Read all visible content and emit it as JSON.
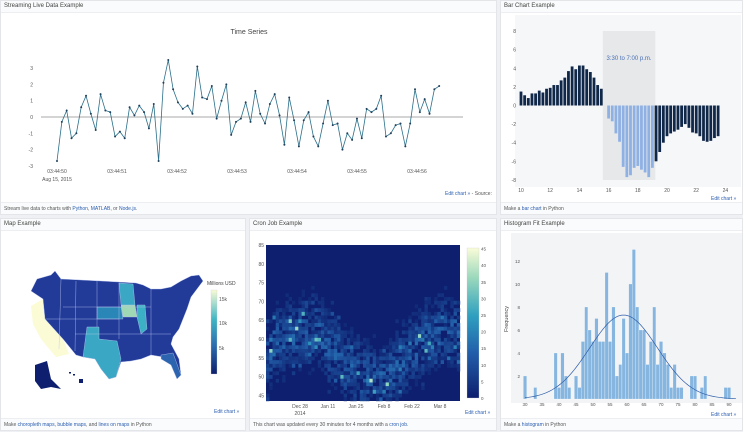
{
  "panels": {
    "stream": {
      "title": "Streaming Live Data Example",
      "footer_pre": "Stream live data to charts with ",
      "link1": "Python",
      "sep1": ", ",
      "link2": "MATLAB",
      "sep2": ", or ",
      "link3": "Node.js",
      "footer_post": ".",
      "edit": "Edit chart »",
      "source": " - Source:"
    },
    "bar": {
      "title": "Bar Chart Example",
      "footer_pre": "Make a ",
      "link1": "bar chart",
      "footer_post": " in Python",
      "edit": "Edit chart »"
    },
    "map": {
      "title": "Map Example",
      "footer_pre": "Make ",
      "link1": "choropleth maps",
      "sep1": ", ",
      "link2": "bubble maps",
      "sep2": ", and ",
      "link3": "lines on maps",
      "footer_post": " in Python",
      "edit": "Edit chart »"
    },
    "cron": {
      "title": "Cron Job Example",
      "footer_pre": "This chart was updated every 30 minutes for 4 months with a ",
      "link1": "cron job",
      "footer_post": ".",
      "edit": "Edit chart »"
    },
    "hist": {
      "title": "Histogram Fit Example",
      "footer_pre": "Make a ",
      "link1": "histogram",
      "footer_post": " in Python",
      "edit": "Edit chart »"
    }
  },
  "colors": {
    "line": "#2a6f8a",
    "bar_dark": "#0f2748",
    "bar_light": "#8fb0e3",
    "hist": "#86b6e0",
    "fit": "#2f5ea8",
    "heat_bg": "#0d1f6e"
  },
  "chart_data": [
    {
      "type": "line",
      "title": "Time Series",
      "ylim": [
        -3,
        3.6
      ],
      "yticks": [
        -3,
        -2,
        -1,
        0,
        1,
        2,
        3
      ],
      "xticks": [
        "03:44:50",
        "03:44:51",
        "03:44:52",
        "03:44:53",
        "03:44:54",
        "03:44:55",
        "03:44:56"
      ],
      "xtick_sub": "Aug 15, 2015",
      "x_seconds_range": [
        0,
        6.37
      ],
      "values": [
        -2.7,
        -0.3,
        0.4,
        -1.3,
        -1.0,
        0.6,
        1.3,
        0.2,
        -0.8,
        1.4,
        0.4,
        0.3,
        -1.2,
        -0.9,
        -1.3,
        0.6,
        0.1,
        0.7,
        0.3,
        -0.7,
        0.8,
        -2.7,
        2.1,
        3.5,
        1.7,
        0.9,
        0.5,
        0.7,
        0.2,
        3.1,
        1.2,
        1.1,
        1.9,
        -0.1,
        1.0,
        2.0,
        -1.1,
        -0.3,
        -0.1,
        0.9,
        -0.3,
        1.6,
        0.2,
        -0.4,
        0.8,
        1.4,
        0.1,
        -1.7,
        1.2,
        -0.2,
        -1.8,
        -0.2,
        0.3,
        -1.2,
        -1.8,
        -0.4,
        1.0,
        -0.5,
        -0.4,
        -2.0,
        -1.0,
        -1.4,
        -0.1,
        -1.3,
        0.5,
        0.3,
        0.5,
        1.3,
        -1.2,
        -1.0,
        -0.5,
        -0.4,
        -1.8,
        -0.4,
        1.7,
        0.3,
        1.1,
        0.2,
        1.7,
        1.9
      ]
    },
    {
      "type": "bar",
      "xlim": [
        9.8,
        24.2
      ],
      "ylim": [
        -8.5,
        8.5
      ],
      "yticks": [
        -8,
        -6,
        -4,
        -2,
        0,
        2,
        4,
        6,
        8
      ],
      "xticks": [
        10,
        12,
        14,
        16,
        18,
        20,
        22,
        24
      ],
      "x_start": 10,
      "x_step": 0.25,
      "highlight": {
        "label": "3:30 to 7:00 p.m.",
        "from": 15.6,
        "to": 19.2
      },
      "values": [
        1.5,
        1.1,
        0.8,
        1.3,
        1.3,
        1.6,
        1.4,
        1.8,
        1.9,
        2.2,
        2.2,
        2.7,
        3.0,
        3.7,
        4.2,
        3.9,
        4.3,
        4.3,
        3.9,
        3.6,
        3.0,
        2.2,
        1.8,
        0,
        -1.4,
        -1.7,
        -3.0,
        -3.9,
        -6.6,
        -7.7,
        -7.5,
        -6.7,
        -6.5,
        -6.9,
        -7.2,
        -7.7,
        -6.7,
        -6.0,
        -5.0,
        -4.0,
        -3.3,
        -3.0,
        -2.8,
        -2.6,
        -2.3,
        -2.0,
        -2.4,
        -2.9,
        -3.0,
        -3.3,
        -3.8,
        -3.9,
        -3.8,
        -3.5,
        -3.3
      ]
    },
    {
      "type": "choropleth",
      "colorbar_title": "Millions USD",
      "colorbar_ticks": [
        "15k",
        "10k",
        "5k"
      ]
    },
    {
      "type": "heatmap",
      "ylim": [
        43.5,
        85
      ],
      "yticks": [
        45,
        50,
        55,
        60,
        65,
        70,
        75,
        80,
        85
      ],
      "xticks": [
        "Dec 28",
        "Jan 11",
        "Jan 25",
        "Feb 8",
        "Feb 22",
        "Mar 8"
      ],
      "xtick_sub": "2014",
      "zlim": [
        0,
        45
      ],
      "colorbar_ticks": [
        0,
        5,
        10,
        15,
        20,
        25,
        30,
        35,
        40,
        45
      ]
    },
    {
      "type": "bar",
      "title": "",
      "ylabel": "Frequency",
      "xlim": [
        29.5,
        92
      ],
      "ylim": [
        0,
        14
      ],
      "yticks": [
        2,
        4,
        6,
        8,
        10,
        12
      ],
      "xticks": [
        30,
        35,
        40,
        45,
        50,
        55,
        60,
        65,
        70,
        75,
        80,
        85,
        90
      ],
      "bin_start": 30,
      "bin_width": 1,
      "values": [
        2,
        0,
        0,
        1,
        0,
        0,
        0,
        0,
        0,
        4,
        1,
        4,
        2,
        1,
        0,
        2,
        1,
        5,
        8,
        6,
        5,
        7,
        5,
        5,
        11,
        5,
        8,
        2,
        3,
        7,
        4,
        10,
        13,
        8,
        6,
        6,
        3,
        5,
        8,
        3,
        5,
        4,
        3,
        1,
        3,
        1,
        1,
        0,
        0,
        2,
        2,
        0,
        1,
        2,
        0,
        0,
        0,
        0,
        0,
        1,
        1
      ],
      "fit": {
        "mean": 59,
        "sd": 10,
        "peak": 7.3
      }
    }
  ]
}
